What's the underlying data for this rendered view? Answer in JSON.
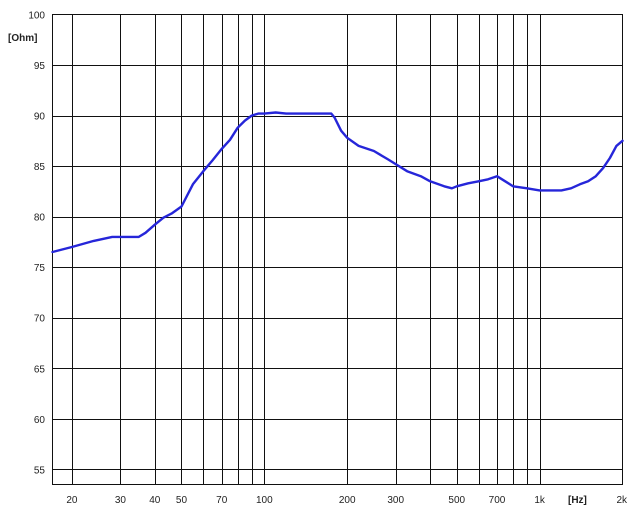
{
  "chart_data": {
    "type": "line",
    "title": "",
    "xlabel": "[Hz]",
    "ylabel": "[Ohm]",
    "x_scale": "log",
    "xlim": [
      17,
      2000
    ],
    "ylim": [
      53.5,
      100
    ],
    "grid": true,
    "legend": "none",
    "colors": {
      "series": "#2626d9",
      "grid": "#111111",
      "background": "#ffffff"
    },
    "x_ticks": [
      {
        "value": 20,
        "label": "20"
      },
      {
        "value": 30,
        "label": "30"
      },
      {
        "value": 40,
        "label": "40"
      },
      {
        "value": 50,
        "label": "50"
      },
      {
        "value": 70,
        "label": "70"
      },
      {
        "value": 100,
        "label": "100"
      },
      {
        "value": 200,
        "label": "200"
      },
      {
        "value": 300,
        "label": "300"
      },
      {
        "value": 500,
        "label": "500"
      },
      {
        "value": 700,
        "label": "700"
      },
      {
        "value": 1000,
        "label": "1k"
      },
      {
        "value": 2000,
        "label": "2k"
      }
    ],
    "x_gridlines": [
      20,
      30,
      40,
      50,
      60,
      70,
      80,
      90,
      100,
      200,
      300,
      400,
      500,
      600,
      700,
      800,
      900,
      1000
    ],
    "y_ticks": [
      {
        "value": 100,
        "label": "100"
      },
      {
        "value": 95,
        "label": "95"
      },
      {
        "value": 90,
        "label": "90"
      },
      {
        "value": 85,
        "label": "85"
      },
      {
        "value": 80,
        "label": "80"
      },
      {
        "value": 75,
        "label": "75"
      },
      {
        "value": 70,
        "label": "70"
      },
      {
        "value": 65,
        "label": "65"
      },
      {
        "value": 60,
        "label": "60"
      },
      {
        "value": 55,
        "label": "55"
      }
    ],
    "series": [
      {
        "name": "",
        "x": [
          17,
          20,
          24,
          28,
          30,
          32,
          35,
          37,
          40,
          43,
          46,
          50,
          55,
          60,
          65,
          70,
          75,
          80,
          85,
          90,
          95,
          100,
          110,
          120,
          140,
          160,
          175,
          180,
          190,
          200,
          220,
          250,
          280,
          300,
          330,
          370,
          400,
          450,
          480,
          500,
          550,
          600,
          650,
          700,
          750,
          800,
          900,
          1000,
          1100,
          1200,
          1300,
          1400,
          1500,
          1600,
          1700,
          1800,
          1900,
          2000
        ],
        "y": [
          76.5,
          77.0,
          77.6,
          78.0,
          78.0,
          78.0,
          78.0,
          78.4,
          79.2,
          79.9,
          80.3,
          81.0,
          83.2,
          84.5,
          85.6,
          86.7,
          87.6,
          88.8,
          89.5,
          90.0,
          90.2,
          90.2,
          90.3,
          90.2,
          90.2,
          90.2,
          90.2,
          89.8,
          88.5,
          87.8,
          87.0,
          86.5,
          85.7,
          85.2,
          84.5,
          84.0,
          83.5,
          83.0,
          82.8,
          83.0,
          83.3,
          83.5,
          83.7,
          84.0,
          83.5,
          83.0,
          82.8,
          82.6,
          82.6,
          82.6,
          82.8,
          83.2,
          83.5,
          84.0,
          84.8,
          85.8,
          87.0,
          87.5
        ]
      }
    ]
  }
}
